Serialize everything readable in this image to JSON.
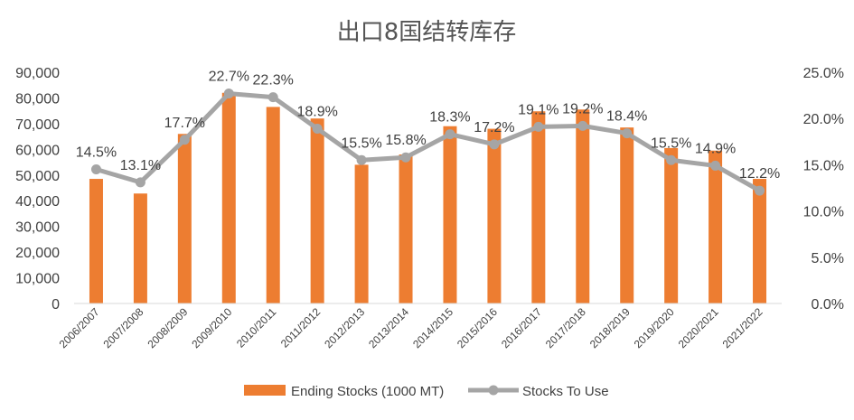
{
  "chart_data": {
    "type": "bar",
    "title": "出口8国结转库存",
    "categories": [
      "2006/2007",
      "2007/2008",
      "2008/2009",
      "2009/2010",
      "2010/2011",
      "2011/2012",
      "2012/2013",
      "2013/2014",
      "2014/2015",
      "2015/2016",
      "2016/2017",
      "2017/2018",
      "2018/2019",
      "2019/2020",
      "2020/2021",
      "2021/2022"
    ],
    "series": [
      {
        "name": "Ending Stocks (1000 MT)",
        "type": "bar",
        "axis": "left",
        "color": "#ED7D31",
        "values": [
          48500,
          42800,
          66000,
          82000,
          76500,
          72000,
          54000,
          58000,
          69000,
          68000,
          74800,
          75500,
          68500,
          60500,
          59500,
          48500
        ]
      },
      {
        "name": "Stocks To Use",
        "type": "line",
        "axis": "right",
        "color": "#A5A5A5",
        "values": [
          14.5,
          13.1,
          17.7,
          22.7,
          22.3,
          18.9,
          15.5,
          15.8,
          18.3,
          17.2,
          19.1,
          19.2,
          18.4,
          15.5,
          14.9,
          12.2
        ],
        "labels": [
          "14.5%",
          "13.1%",
          "17.7%",
          "22.7%",
          "22.3%",
          "18.9%",
          "15.5%",
          "15.8%",
          "18.3%",
          "17.2%",
          "19.1%",
          "19.2%",
          "18.4%",
          "15.5%",
          "14.9%",
          "12.2%"
        ]
      }
    ],
    "y_left": {
      "min": 0,
      "max": 90000,
      "ticks": [
        "0",
        "10,000",
        "20,000",
        "30,000",
        "40,000",
        "50,000",
        "60,000",
        "70,000",
        "80,000",
        "90,000"
      ]
    },
    "y_right": {
      "min": 0,
      "max": 25,
      "ticks": [
        "0.0%",
        "5.0%",
        "10.0%",
        "15.0%",
        "20.0%",
        "25.0%"
      ]
    },
    "grid": false,
    "legend_position": "bottom"
  }
}
